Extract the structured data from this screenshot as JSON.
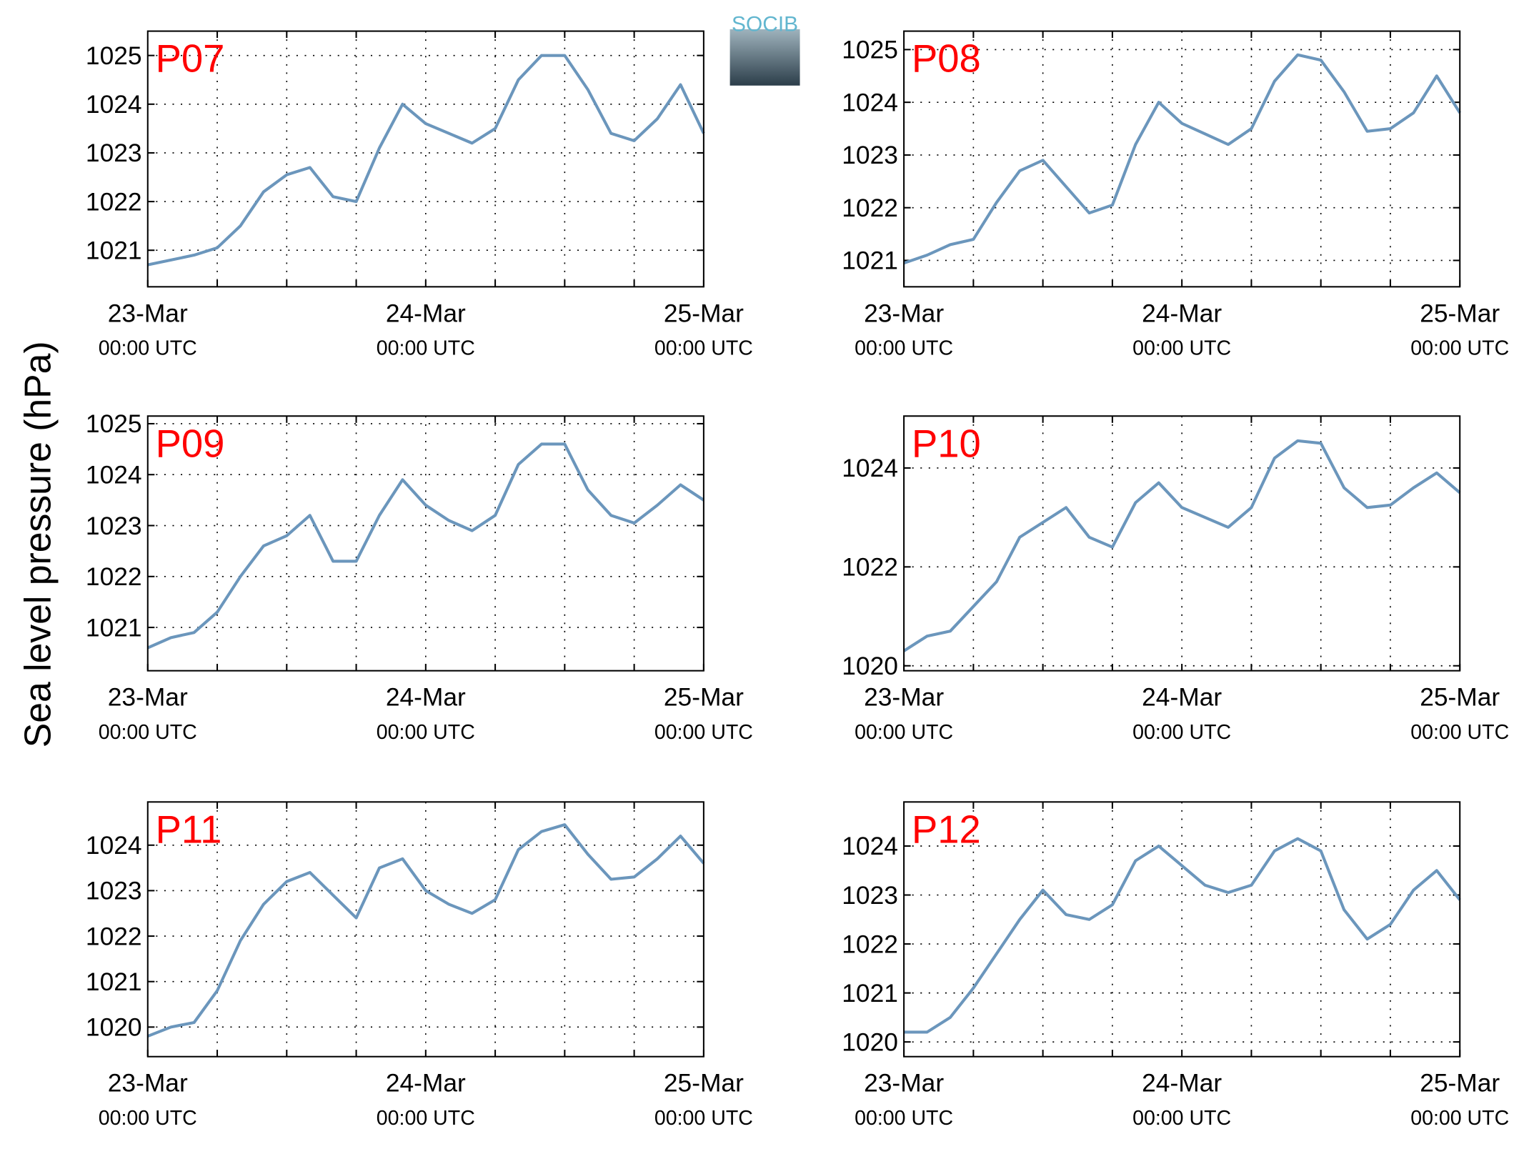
{
  "ylabel": "Sea level pressure (hPa)",
  "logo": "SOCIB",
  "chart_data": [
    {
      "type": "line",
      "title": "P07",
      "x": [
        0,
        2,
        4,
        6,
        8,
        10,
        12,
        14,
        16,
        18,
        20,
        22,
        24,
        26,
        28,
        30,
        32,
        34,
        36,
        38,
        40,
        42,
        44,
        46,
        48
      ],
      "xlim": [
        0,
        48
      ],
      "xticks": [
        {
          "value": 0,
          "label": "23-Mar\n00:00 UTC"
        },
        {
          "value": 24,
          "label": "24-Mar\n00:00 UTC"
        },
        {
          "value": 48,
          "label": "25-Mar\n00:00 UTC"
        }
      ],
      "xminorticks": [
        6,
        12,
        18,
        30,
        36,
        42
      ],
      "ylim": [
        1020.25,
        1025.5
      ],
      "yticks": [
        1021,
        1022,
        1023,
        1024,
        1025
      ],
      "grid": true,
      "series": [
        {
          "color": "#6b96bc",
          "values": [
            1020.7,
            1020.8,
            1020.9,
            1021.05,
            1021.5,
            1022.2,
            1022.55,
            1022.7,
            1022.1,
            1022.0,
            1023.1,
            1024.0,
            1023.6,
            1023.4,
            1023.2,
            1023.5,
            1024.5,
            1025.0,
            1025.0,
            1024.3,
            1023.4,
            1023.25,
            1023.7,
            1024.4,
            1023.4
          ]
        }
      ]
    },
    {
      "type": "line",
      "title": "P08",
      "x": [
        0,
        2,
        4,
        6,
        8,
        10,
        12,
        14,
        16,
        18,
        20,
        22,
        24,
        26,
        28,
        30,
        32,
        34,
        36,
        38,
        40,
        42,
        44,
        46,
        48
      ],
      "xlim": [
        0,
        48
      ],
      "xticks": [
        {
          "value": 0,
          "label": "23-Mar\n00:00 UTC"
        },
        {
          "value": 24,
          "label": "24-Mar\n00:00 UTC"
        },
        {
          "value": 48,
          "label": "25-Mar\n00:00 UTC"
        }
      ],
      "xminorticks": [
        6,
        12,
        18,
        30,
        36,
        42
      ],
      "ylim": [
        1020.5,
        1025.35
      ],
      "yticks": [
        1021,
        1022,
        1023,
        1024,
        1025
      ],
      "grid": true,
      "series": [
        {
          "color": "#6b96bc",
          "values": [
            1020.95,
            1021.1,
            1021.3,
            1021.4,
            1022.1,
            1022.7,
            1022.9,
            1022.4,
            1021.9,
            1022.05,
            1023.2,
            1024.0,
            1023.6,
            1023.4,
            1023.2,
            1023.5,
            1024.4,
            1024.9,
            1024.8,
            1024.2,
            1023.45,
            1023.5,
            1023.8,
            1024.5,
            1023.8
          ]
        }
      ]
    },
    {
      "type": "line",
      "title": "P09",
      "x": [
        0,
        2,
        4,
        6,
        8,
        10,
        12,
        14,
        16,
        18,
        20,
        22,
        24,
        26,
        28,
        30,
        32,
        34,
        36,
        38,
        40,
        42,
        44,
        46,
        48
      ],
      "xlim": [
        0,
        48
      ],
      "xticks": [
        {
          "value": 0,
          "label": "23-Mar\n00:00 UTC"
        },
        {
          "value": 24,
          "label": "24-Mar\n00:00 UTC"
        },
        {
          "value": 48,
          "label": "25-Mar\n00:00 UTC"
        }
      ],
      "xminorticks": [
        6,
        12,
        18,
        30,
        36,
        42
      ],
      "ylim": [
        1020.15,
        1025.15
      ],
      "yticks": [
        1021,
        1022,
        1023,
        1024,
        1025
      ],
      "grid": true,
      "series": [
        {
          "color": "#6b96bc",
          "values": [
            1020.6,
            1020.8,
            1020.9,
            1021.3,
            1022.0,
            1022.6,
            1022.8,
            1023.2,
            1022.3,
            1022.3,
            1023.2,
            1023.9,
            1023.4,
            1023.1,
            1022.9,
            1023.2,
            1024.2,
            1024.6,
            1024.6,
            1023.7,
            1023.2,
            1023.05,
            1023.4,
            1023.8,
            1023.5
          ]
        }
      ]
    },
    {
      "type": "line",
      "title": "P10",
      "x": [
        0,
        2,
        4,
        6,
        8,
        10,
        12,
        14,
        16,
        18,
        20,
        22,
        24,
        26,
        28,
        30,
        32,
        34,
        36,
        38,
        40,
        42,
        44,
        46,
        48
      ],
      "xlim": [
        0,
        48
      ],
      "xticks": [
        {
          "value": 0,
          "label": "23-Mar\n00:00 UTC"
        },
        {
          "value": 24,
          "label": "24-Mar\n00:00 UTC"
        },
        {
          "value": 48,
          "label": "25-Mar\n00:00 UTC"
        }
      ],
      "xminorticks": [
        6,
        12,
        18,
        30,
        36,
        42
      ],
      "ylim": [
        1019.9,
        1025.05
      ],
      "yticks": [
        1020,
        1022,
        1024
      ],
      "grid": true,
      "series": [
        {
          "color": "#6b96bc",
          "values": [
            1020.3,
            1020.6,
            1020.7,
            1021.2,
            1021.7,
            1022.6,
            1022.9,
            1023.2,
            1022.6,
            1022.4,
            1023.3,
            1023.7,
            1023.2,
            1023.0,
            1022.8,
            1023.2,
            1024.2,
            1024.55,
            1024.5,
            1023.6,
            1023.2,
            1023.25,
            1023.6,
            1023.9,
            1023.5
          ]
        }
      ]
    },
    {
      "type": "line",
      "title": "P11",
      "x": [
        0,
        2,
        4,
        6,
        8,
        10,
        12,
        14,
        16,
        18,
        20,
        22,
        24,
        26,
        28,
        30,
        32,
        34,
        36,
        38,
        40,
        42,
        44,
        46,
        48
      ],
      "xlim": [
        0,
        48
      ],
      "xticks": [
        {
          "value": 0,
          "label": "23-Mar\n00:00 UTC"
        },
        {
          "value": 24,
          "label": "24-Mar\n00:00 UTC"
        },
        {
          "value": 48,
          "label": "25-Mar\n00:00 UTC"
        }
      ],
      "xminorticks": [
        6,
        12,
        18,
        30,
        36,
        42
      ],
      "ylim": [
        1019.35,
        1024.95
      ],
      "yticks": [
        1020,
        1021,
        1022,
        1023,
        1024
      ],
      "grid": true,
      "series": [
        {
          "color": "#6b96bc",
          "values": [
            1019.8,
            1020.0,
            1020.1,
            1020.8,
            1021.9,
            1022.7,
            1023.2,
            1023.4,
            1022.9,
            1022.4,
            1023.5,
            1023.7,
            1023.0,
            1022.7,
            1022.5,
            1022.8,
            1023.9,
            1024.3,
            1024.45,
            1023.8,
            1023.25,
            1023.3,
            1023.7,
            1024.2,
            1023.6
          ]
        }
      ]
    },
    {
      "type": "line",
      "title": "P12",
      "x": [
        0,
        2,
        4,
        6,
        8,
        10,
        12,
        14,
        16,
        18,
        20,
        22,
        24,
        26,
        28,
        30,
        32,
        34,
        36,
        38,
        40,
        42,
        44,
        46,
        48
      ],
      "xlim": [
        0,
        48
      ],
      "xticks": [
        {
          "value": 0,
          "label": "23-Mar\n00:00 UTC"
        },
        {
          "value": 24,
          "label": "24-Mar\n00:00 UTC"
        },
        {
          "value": 48,
          "label": "25-Mar\n00:00 UTC"
        }
      ],
      "xminorticks": [
        6,
        12,
        18,
        30,
        36,
        42
      ],
      "ylim": [
        1019.7,
        1024.9
      ],
      "yticks": [
        1020,
        1021,
        1022,
        1023,
        1024
      ],
      "grid": true,
      "series": [
        {
          "color": "#6b96bc",
          "values": [
            1020.2,
            1020.2,
            1020.5,
            1021.1,
            1021.8,
            1022.5,
            1023.1,
            1022.6,
            1022.5,
            1022.8,
            1023.7,
            1024.0,
            1023.6,
            1023.2,
            1023.05,
            1023.2,
            1023.9,
            1024.15,
            1023.9,
            1022.7,
            1022.1,
            1022.4,
            1023.1,
            1023.5,
            1022.9
          ]
        }
      ]
    }
  ]
}
